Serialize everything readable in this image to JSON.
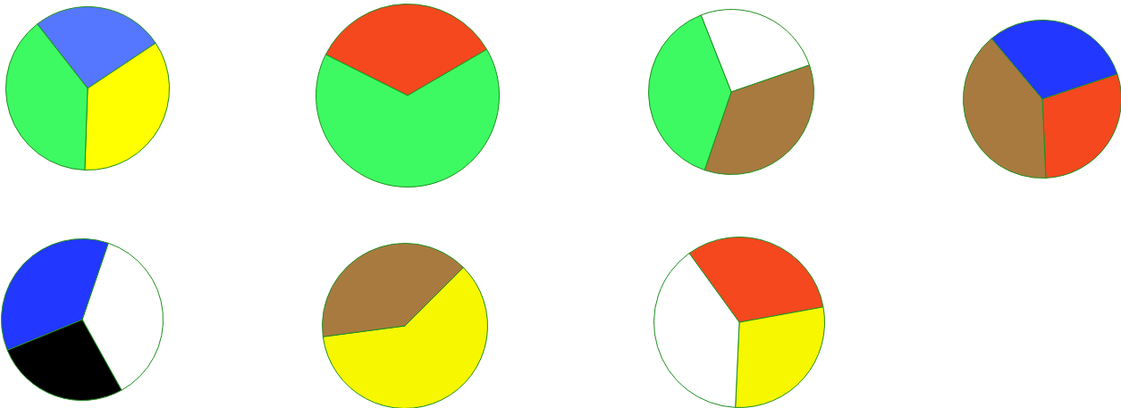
{
  "chart_data": [
    {
      "type": "pie",
      "categories": [
        null,
        null,
        null
      ],
      "values": [
        26.2,
        34.9,
        38.9
      ],
      "colors": [
        "#5577ff",
        "#ffff00",
        "#3dfa62"
      ]
    },
    {
      "type": "pie",
      "categories": [
        null,
        null
      ],
      "values": [
        34.2,
        65.8
      ],
      "colors": [
        "#f5481f",
        "#3dfa62"
      ]
    },
    {
      "type": "pie",
      "categories": [
        null,
        null,
        null
      ],
      "values": [
        25.7,
        35.5,
        38.8
      ],
      "colors": [
        "#ffffff",
        "#a87a40",
        "#3dfa62"
      ]
    },
    {
      "type": "pie",
      "categories": [
        null,
        null,
        null
      ],
      "values": [
        31.0,
        29.4,
        39.6
      ],
      "colors": [
        "#2237ff",
        "#f5481f",
        "#a87a40"
      ]
    },
    {
      "type": "pie",
      "categories": [
        null,
        null,
        null
      ],
      "values": [
        36.7,
        26.9,
        36.4
      ],
      "colors": [
        "#ffffff",
        "#000000",
        "#2237ff"
      ]
    },
    {
      "type": "pie",
      "categories": [
        null,
        null
      ],
      "values": [
        60.4,
        39.6
      ],
      "colors": [
        "#f7f700",
        "#a87a40"
      ]
    },
    {
      "type": "pie",
      "categories": [
        null,
        null,
        null
      ],
      "values": [
        32.1,
        28.6,
        39.3
      ],
      "colors": [
        "#f5481f",
        "#f7f700",
        "#ffffff"
      ]
    }
  ]
}
